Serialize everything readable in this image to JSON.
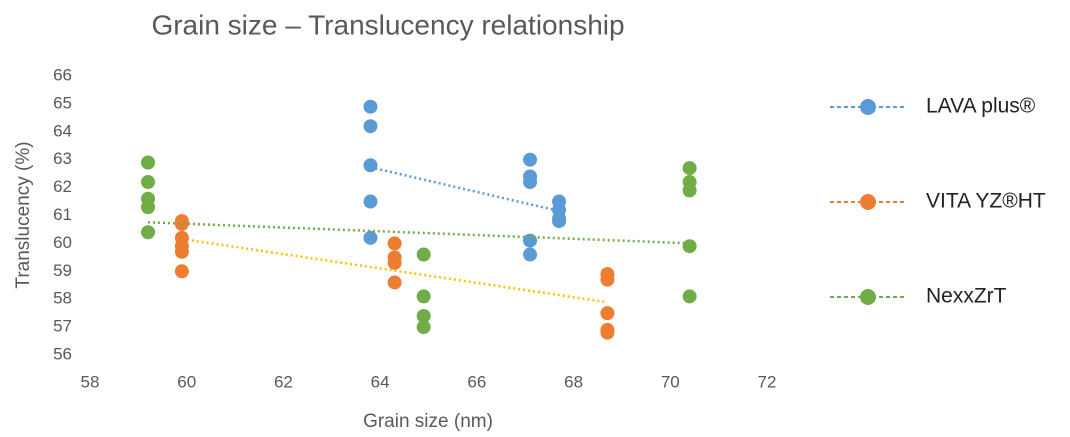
{
  "chart_data": {
    "type": "scatter",
    "title": "Grain size – Translucency relationship",
    "x_label": "Grain size (nm)",
    "y_label": "Translucency (%)",
    "xlim": [
      58,
      72
    ],
    "xticks": [
      58,
      60,
      62,
      64,
      66,
      68,
      70,
      72
    ],
    "ylim": [
      56,
      66
    ],
    "yticks": [
      56,
      57,
      58,
      59,
      60,
      61,
      62,
      63,
      64,
      65,
      66
    ],
    "legend": "right",
    "trendline": true,
    "series": [
      {
        "name": "LAVA plus®",
        "color": "#5b9bd5",
        "trendline_color": "#5b9bd5",
        "x": [
          63.8,
          63.8,
          63.8,
          63.8,
          63.8,
          67.1,
          67.1,
          67.1,
          67.1,
          67.1,
          67.7,
          67.7,
          67.7,
          67.7
        ],
        "values": [
          64.9,
          64.2,
          62.8,
          61.5,
          60.2,
          63.0,
          62.4,
          62.2,
          60.1,
          59.6,
          61.5,
          61.2,
          60.9,
          60.8
        ]
      },
      {
        "name": "VITA YZ®HT",
        "color": "#ed7d31",
        "trendline_color": "#ffc000",
        "x": [
          59.9,
          59.9,
          59.9,
          59.9,
          59.9,
          59.9,
          64.3,
          64.3,
          64.3,
          64.3,
          68.7,
          68.7,
          68.7,
          68.7,
          68.7
        ],
        "values": [
          60.8,
          60.7,
          60.2,
          59.9,
          59.7,
          59.0,
          60.0,
          59.5,
          59.3,
          58.6,
          58.9,
          58.7,
          57.5,
          56.9,
          56.8
        ]
      },
      {
        "name": "NexxZrT",
        "color": "#70ad47",
        "trendline_color": "#70ad47",
        "x": [
          59.2,
          59.2,
          59.2,
          59.2,
          59.2,
          64.9,
          64.9,
          64.9,
          64.9,
          70.4,
          70.4,
          70.4,
          70.4,
          70.4
        ],
        "values": [
          62.9,
          62.2,
          61.6,
          61.3,
          60.4,
          59.6,
          58.1,
          57.4,
          57.0,
          62.7,
          62.2,
          61.9,
          59.9,
          58.1
        ]
      }
    ]
  }
}
